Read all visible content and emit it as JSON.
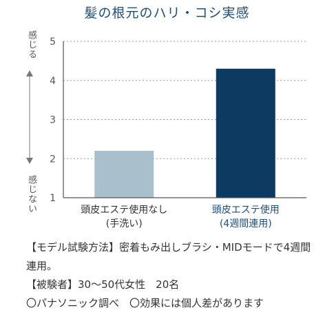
{
  "chart_data": {
    "type": "bar",
    "title": "髪の根元のハリ・コシ実感",
    "categories": [
      {
        "line1": "頭皮エステ使用なし",
        "line2": "(手洗い)",
        "color": "#a9bfcc",
        "label_color": "#333333"
      },
      {
        "line1": "頭皮エステ使用",
        "line2": "(4週間連用)",
        "color": "#0d3a61",
        "label_color": "#1d4e78"
      }
    ],
    "values": [
      2.2,
      4.3
    ],
    "ylim": [
      1,
      5
    ],
    "yticks": [
      "1",
      "2",
      "3",
      "4",
      "5"
    ],
    "ylabel_top": "感じる",
    "ylabel_bottom": "感じない",
    "grid": true
  },
  "notes": [
    "【モデル試験方法】密着もみ出しブラシ・MIDモードで4週間連用。",
    "【被験者】30〜50代女性　20名",
    "〇パナソニック調べ　〇効果には個人差があります"
  ]
}
